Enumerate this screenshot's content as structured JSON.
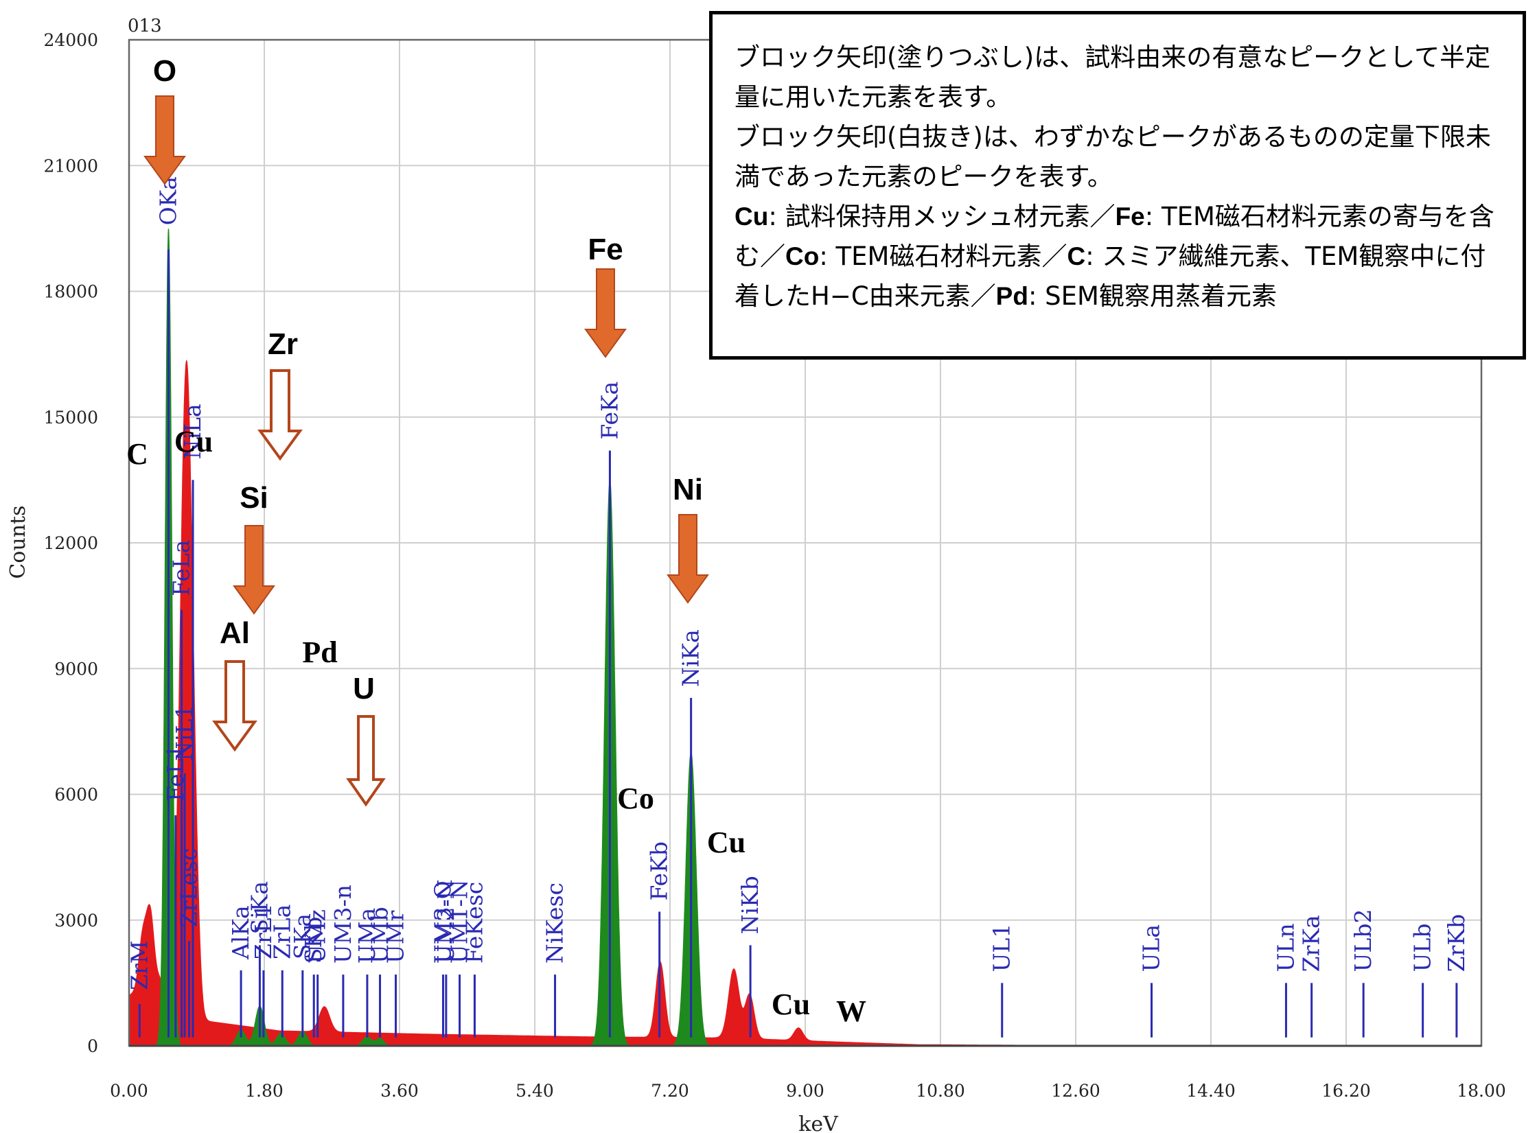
{
  "chart_data": {
    "type": "line",
    "title": "",
    "code": "013",
    "xlabel": "keV",
    "ylabel": "Counts",
    "xlim": [
      0,
      18
    ],
    "ylim": [
      0,
      24000
    ],
    "x_ticks": [
      "0.00",
      "1.80",
      "3.60",
      "5.40",
      "7.20",
      "9.00",
      "10.80",
      "12.60",
      "14.40",
      "16.20",
      "18.00"
    ],
    "y_ticks": [
      "0",
      "3000",
      "6000",
      "9000",
      "12000",
      "15000",
      "18000",
      "21000",
      "24000"
    ],
    "grid": true,
    "series": [
      {
        "color": "#e31a1c",
        "peaks": [
          {
            "x": 0.18,
            "y": 1200,
            "w": 0.05
          },
          {
            "x": 0.28,
            "y": 1700,
            "w": 0.05
          },
          {
            "x": 0.62,
            "y": 1300,
            "w": 0.05
          },
          {
            "x": 0.71,
            "y": 8300,
            "w": 0.05
          },
          {
            "x": 0.78,
            "y": 9000,
            "w": 0.05
          },
          {
            "x": 0.85,
            "y": 6000,
            "w": 0.06
          },
          {
            "x": 2.6,
            "y": 600,
            "w": 0.07
          },
          {
            "x": 7.07,
            "y": 1800,
            "w": 0.06
          },
          {
            "x": 8.05,
            "y": 1650,
            "w": 0.07
          },
          {
            "x": 8.26,
            "y": 1050,
            "w": 0.06
          },
          {
            "x": 8.91,
            "y": 300,
            "w": 0.06
          }
        ],
        "background": [
          [
            0,
            1200
          ],
          [
            0.4,
            1600
          ],
          [
            1.0,
            600
          ],
          [
            2.0,
            360
          ],
          [
            4.0,
            280
          ],
          [
            6.0,
            220
          ],
          [
            8.0,
            190
          ],
          [
            9.5,
            90
          ],
          [
            10.5,
            30
          ],
          [
            12,
            15
          ],
          [
            18,
            8
          ]
        ]
      },
      {
        "color": "#1e8a1e",
        "peaks": [
          {
            "x": 0.525,
            "y": 19500,
            "w": 0.045
          },
          {
            "x": 1.49,
            "y": 380,
            "w": 0.06
          },
          {
            "x": 1.74,
            "y": 950,
            "w": 0.06
          },
          {
            "x": 2.02,
            "y": 300,
            "w": 0.06
          },
          {
            "x": 2.31,
            "y": 350,
            "w": 0.06
          },
          {
            "x": 3.17,
            "y": 220,
            "w": 0.06
          },
          {
            "x": 3.34,
            "y": 180,
            "w": 0.05
          },
          {
            "x": 6.4,
            "y": 13500,
            "w": 0.07
          },
          {
            "x": 7.48,
            "y": 7000,
            "w": 0.07
          }
        ]
      }
    ],
    "lines": [
      {
        "x": 0.14,
        "len": 1000,
        "label": "ZrM"
      },
      {
        "x": 0.525,
        "len": 19000,
        "label": "OKa"
      },
      {
        "x": 0.62,
        "len": 5500,
        "label": "FeL1"
      },
      {
        "x": 0.7,
        "len": 10400,
        "label": "FeLa"
      },
      {
        "x": 0.74,
        "len": 6500,
        "label": "NiL1"
      },
      {
        "x": 0.85,
        "len": 13500,
        "label": "NiLa"
      },
      {
        "x": 0.8,
        "len": 2500,
        "label": "ZrLesc"
      },
      {
        "x": 1.49,
        "len": 1800,
        "label": "AlKa"
      },
      {
        "x": 1.74,
        "len": 2400,
        "label": "SiKa"
      },
      {
        "x": 1.79,
        "len": 1800,
        "label": "ZrL1"
      },
      {
        "x": 2.04,
        "len": 1800,
        "label": "ZrLa"
      },
      {
        "x": 2.31,
        "len": 1800,
        "label": "SKa"
      },
      {
        "x": 2.46,
        "len": 1700,
        "label": "SKb"
      },
      {
        "x": 2.51,
        "len": 1700,
        "label": "UMz"
      },
      {
        "x": 2.85,
        "len": 1700,
        "label": "UM3-n"
      },
      {
        "x": 3.17,
        "len": 1700,
        "label": "UMa"
      },
      {
        "x": 3.34,
        "len": 1700,
        "label": "UMb"
      },
      {
        "x": 3.55,
        "len": 1700,
        "label": "UMr"
      },
      {
        "x": 4.18,
        "len": 1700,
        "label": "UM3-O"
      },
      {
        "x": 4.4,
        "len": 1700,
        "label": "UM1-N"
      },
      {
        "x": 4.6,
        "len": 1700,
        "label": "FeKesc"
      },
      {
        "x": 4.22,
        "len": 1700,
        "label": "UM2-N"
      },
      {
        "x": 5.67,
        "len": 1700,
        "label": "NiKesc"
      },
      {
        "x": 6.4,
        "len": 14200,
        "label": "FeKa"
      },
      {
        "x": 7.06,
        "len": 3200,
        "label": "FeKb"
      },
      {
        "x": 7.48,
        "len": 8300,
        "label": "NiKa"
      },
      {
        "x": 8.27,
        "len": 2400,
        "label": "NiKb"
      },
      {
        "x": 11.62,
        "len": 1500,
        "label": "UL1"
      },
      {
        "x": 13.61,
        "len": 1500,
        "label": "ULa"
      },
      {
        "x": 15.4,
        "len": 1500,
        "label": "ULn"
      },
      {
        "x": 15.74,
        "len": 1500,
        "label": "ZrKa"
      },
      {
        "x": 16.43,
        "len": 1500,
        "label": "ULb2"
      },
      {
        "x": 17.22,
        "len": 1500,
        "label": "ULb"
      },
      {
        "x": 17.67,
        "len": 1500,
        "label": "ZrKb"
      }
    ],
    "annotations": [
      {
        "text": "O",
        "style": "bold",
        "arrow": "filled"
      },
      {
        "text": "Zr",
        "style": "bold",
        "arrow": "hollow"
      },
      {
        "text": "C",
        "style": "serif",
        "arrow": "none"
      },
      {
        "text": "Cu",
        "style": "serif",
        "arrow": "none"
      },
      {
        "text": "Si",
        "style": "bold",
        "arrow": "filled"
      },
      {
        "text": "Al",
        "style": "bold",
        "arrow": "hollow"
      },
      {
        "text": "Pd",
        "style": "serif",
        "arrow": "none"
      },
      {
        "text": "U",
        "style": "bold",
        "arrow": "hollow"
      },
      {
        "text": "Fe",
        "style": "bold",
        "arrow": "filled"
      },
      {
        "text": "Ni",
        "style": "bold",
        "arrow": "filled"
      },
      {
        "text": "Co",
        "style": "serif",
        "arrow": "none"
      },
      {
        "text": "Cu",
        "style": "serif",
        "arrow": "none"
      },
      {
        "text": "Cu",
        "style": "serif",
        "arrow": "none"
      },
      {
        "text": "W",
        "style": "serif",
        "arrow": "none"
      }
    ],
    "colors": {
      "red": "#e31a1c",
      "green": "#1e8a1e",
      "marker": "#2a2ab3",
      "arrow": "#e06a2c",
      "arrow_stroke": "#b3461b"
    }
  },
  "legend_note": {
    "line1": "ブロック矢印(塗りつぶし)は、試料由来の有意なピークとして半定量に用いた元素を表す。",
    "line2": "ブロック矢印(白抜き)は、わずかなピークがあるものの定量下限未満であった元素のピークを表す。",
    "line3_parts": [
      {
        "el": "Cu",
        "desc": ": 試料保持用メッシュ材元素／"
      },
      {
        "el": "Fe",
        "desc": ": TEM磁石材料元素の寄与を含む／"
      },
      {
        "el": "Co",
        "desc": ": TEM磁石材料元素／"
      },
      {
        "el": "C",
        "desc": ": スミア繊維元素、TEM観察中に付着したH−C由来元素／"
      },
      {
        "el": "Pd",
        "desc": ": SEM観察用蒸着元素"
      }
    ]
  }
}
